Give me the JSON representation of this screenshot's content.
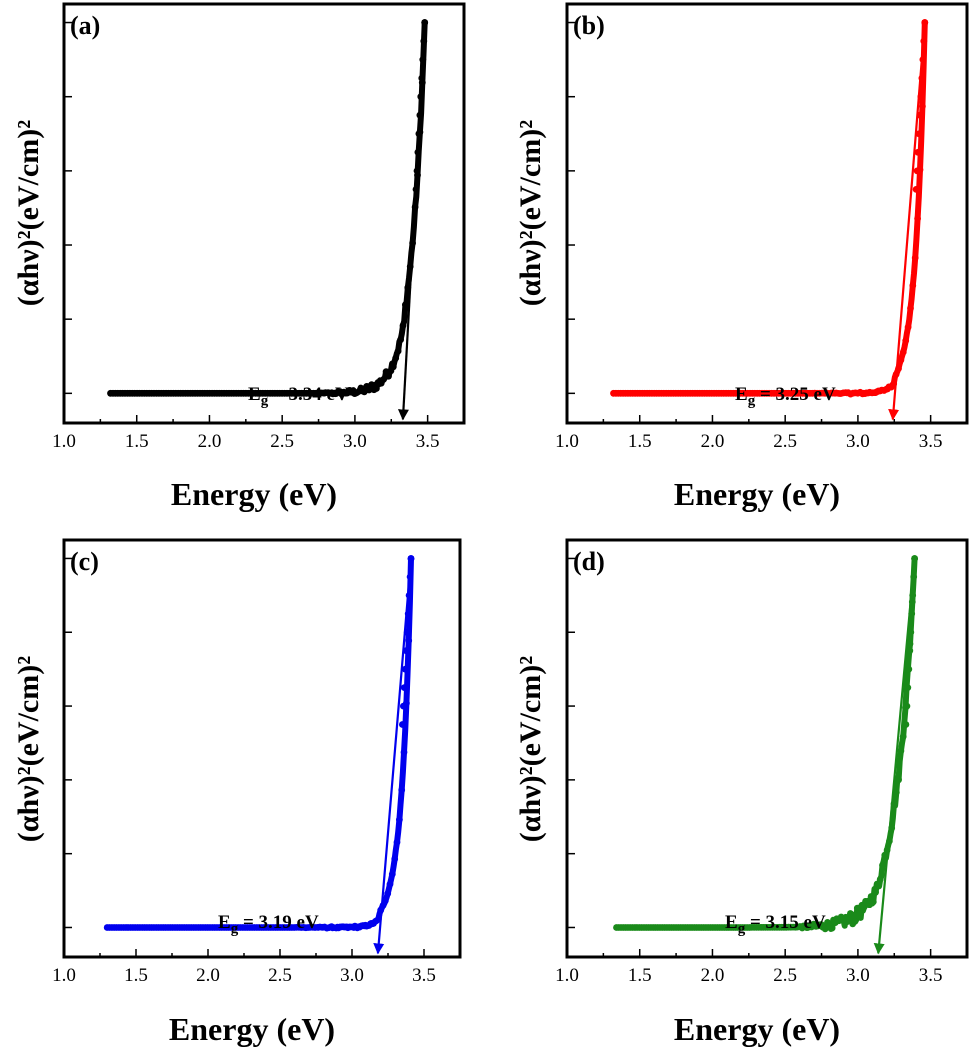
{
  "chart_data": [
    {
      "type": "scatter",
      "panel_label": "(a)",
      "color": "#000000",
      "xlabel": "Energy (eV)",
      "ylabel": "(αhν)²(eV/cm)²",
      "xlim": [
        1.0,
        3.75
      ],
      "ylim": [
        -0.08,
        1.05
      ],
      "xticks": [
        "1.0",
        "1.5",
        "2.0",
        "2.5",
        "3.0",
        "3.5"
      ],
      "yticks_count": 5,
      "yticks_labeled": false,
      "curve": {
        "x_start": 1.32,
        "x_end": 3.48,
        "base": 0.0,
        "peak": 1.0,
        "edge": 3.34,
        "decay": 0.09,
        "noise": 0.012
      },
      "fit_line": {
        "x1": 3.48,
        "y1": 1.0,
        "x2": 3.33,
        "y2": -0.07
      },
      "band_gap_label": {
        "main": "E",
        "sub": "g",
        "rest": " = 3.34 eV",
        "value_eV": 3.34
      }
    },
    {
      "type": "scatter",
      "panel_label": "(b)",
      "color": "#ff0000",
      "xlabel": "Energy (eV)",
      "ylabel": "(αhν)²(eV/cm)²",
      "xlim": [
        1.0,
        3.75
      ],
      "ylim": [
        -0.08,
        1.05
      ],
      "xticks": [
        "1.0",
        "1.5",
        "2.0",
        "2.5",
        "3.0",
        "3.5"
      ],
      "yticks_count": 5,
      "yticks_labeled": false,
      "curve": {
        "x_start": 1.32,
        "x_end": 3.46,
        "base": 0.0,
        "peak": 1.0,
        "edge": 3.25,
        "decay": 0.06,
        "noise": 0.003
      },
      "fit_line": {
        "x1": 3.46,
        "y1": 1.0,
        "x2": 3.24,
        "y2": -0.07
      },
      "band_gap_label": {
        "main": "E",
        "sub": "g",
        "rest": " = 3.25 eV",
        "value_eV": 3.25
      }
    },
    {
      "type": "scatter",
      "panel_label": "(c)",
      "color": "#0000ee",
      "xlabel": "Energy (eV)",
      "ylabel": "(αhν)²(eV/cm)²",
      "xlim": [
        1.0,
        3.75
      ],
      "ylim": [
        -0.08,
        1.05
      ],
      "xticks": [
        "1.0",
        "1.5",
        "2.0",
        "2.5",
        "3.0",
        "3.5"
      ],
      "yticks_count": 5,
      "yticks_labeled": false,
      "curve": {
        "x_start": 1.3,
        "x_end": 3.41,
        "base": 0.0,
        "peak": 1.0,
        "edge": 3.19,
        "decay": 0.06,
        "noise": 0.003
      },
      "fit_line": {
        "x1": 3.41,
        "y1": 1.0,
        "x2": 3.18,
        "y2": -0.07
      },
      "band_gap_label": {
        "main": "E",
        "sub": "g",
        "rest": " = 3.19 eV",
        "value_eV": 3.19
      }
    },
    {
      "type": "scatter",
      "panel_label": "(d)",
      "color": "#1a8a1a",
      "xlabel": "Energy (eV)",
      "ylabel": "(αhν)²(eV/cm)²",
      "xlim": [
        1.0,
        3.75
      ],
      "ylim": [
        -0.08,
        1.05
      ],
      "xticks": [
        "1.0",
        "1.5",
        "2.0",
        "2.5",
        "3.0",
        "3.5"
      ],
      "yticks_count": 5,
      "yticks_labeled": false,
      "curve": {
        "x_start": 1.34,
        "x_end": 3.39,
        "base": 0.0,
        "peak": 1.0,
        "edge": 3.15,
        "decay": 0.12,
        "noise": 0.018
      },
      "fit_line": {
        "x1": 3.39,
        "y1": 1.0,
        "x2": 3.14,
        "y2": -0.07
      },
      "band_gap_label": {
        "main": "E",
        "sub": "g",
        "rest": " = 3.15 eV",
        "value_eV": 3.15
      }
    }
  ]
}
